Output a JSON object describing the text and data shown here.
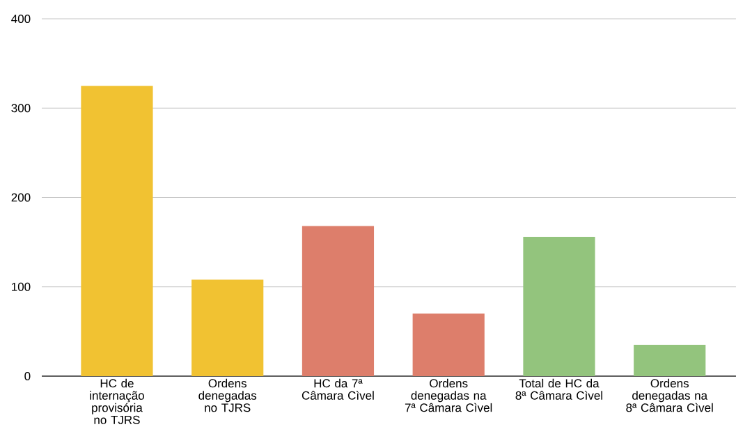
{
  "chart_data": {
    "type": "bar",
    "categories": [
      "HC de internação provisória no TJRS",
      "Ordens denegadas no TJRS",
      "HC da  7ª Câmara Cìvel",
      "Ordens denegadas na 7ª Câmara Cìvel",
      "Total de HC da 8ª Câmara Cìvel",
      "Ordens denegadas na 8ª Câmara Cìvel"
    ],
    "values": [
      325,
      108,
      168,
      70,
      156,
      35
    ],
    "colors": [
      "#f1c232",
      "#f1c232",
      "#dd7e6b",
      "#dd7e6b",
      "#93c47d",
      "#93c47d"
    ],
    "ylim": [
      0,
      400
    ],
    "yticks": [
      0,
      100,
      200,
      300,
      400
    ],
    "grid": "y"
  }
}
